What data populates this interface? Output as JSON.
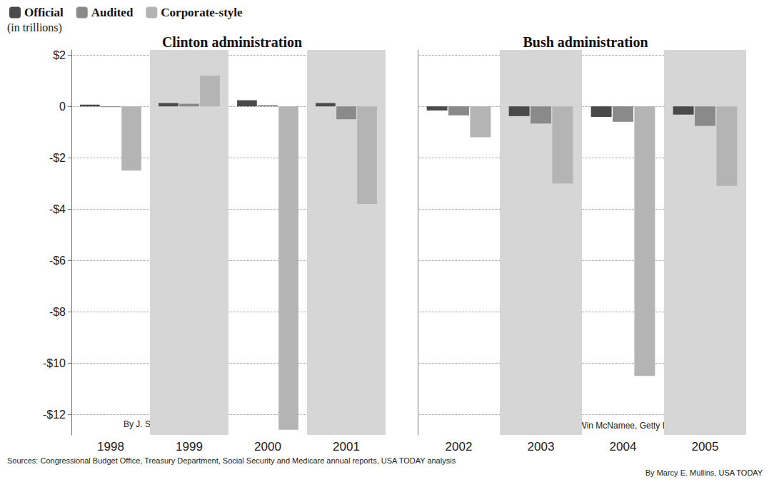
{
  "chart_data": {
    "type": "bar",
    "y_label": "(in trillions)",
    "categories": [
      "1998",
      "1999",
      "2000",
      "2001",
      "2002",
      "2003",
      "2004",
      "2005"
    ],
    "groups": [
      {
        "title": "Clinton administration",
        "categories": [
          "1998",
          "1999",
          "2000",
          "2001"
        ],
        "credit": "By J. Scott Applewhite, AP"
      },
      {
        "title": "Bush administration",
        "categories": [
          "2002",
          "2003",
          "2004",
          "2005"
        ],
        "credit": "By Win McNamee, Getty Images"
      }
    ],
    "series": [
      {
        "name": "Official",
        "color": "#4a4a4a",
        "values": [
          0.07,
          0.13,
          0.24,
          0.13,
          -0.16,
          -0.38,
          -0.41,
          -0.32
        ]
      },
      {
        "name": "Audited",
        "color": "#8a8a8a",
        "values": [
          -0.03,
          0.1,
          0.05,
          -0.5,
          -0.35,
          -0.67,
          -0.6,
          -0.76
        ]
      },
      {
        "name": "Corporate-style",
        "color": "#b4b4b4",
        "values": [
          -2.5,
          1.2,
          -12.6,
          -3.8,
          -1.2,
          -3.0,
          -10.5,
          -3.1
        ]
      }
    ],
    "ylim": [
      -12.8,
      2.2
    ],
    "yticks": [
      {
        "value": 2,
        "label": "$2"
      },
      0,
      {
        "value": -2,
        "label": "-$2"
      },
      {
        "value": -4,
        "label": "-$4"
      },
      {
        "value": -6,
        "label": "-$6"
      },
      {
        "value": -8,
        "label": "-$8"
      },
      {
        "value": -10,
        "label": "-$10"
      },
      {
        "value": -12,
        "label": "-$12"
      }
    ],
    "grid": true,
    "legend": "top-left",
    "source": "Sources: Congressional Budget Office, Treasury Department, Social Security and Medicare annual reports, USA TODAY analysis",
    "credit": "By Marcy E. Mullins, USA TODAY"
  }
}
